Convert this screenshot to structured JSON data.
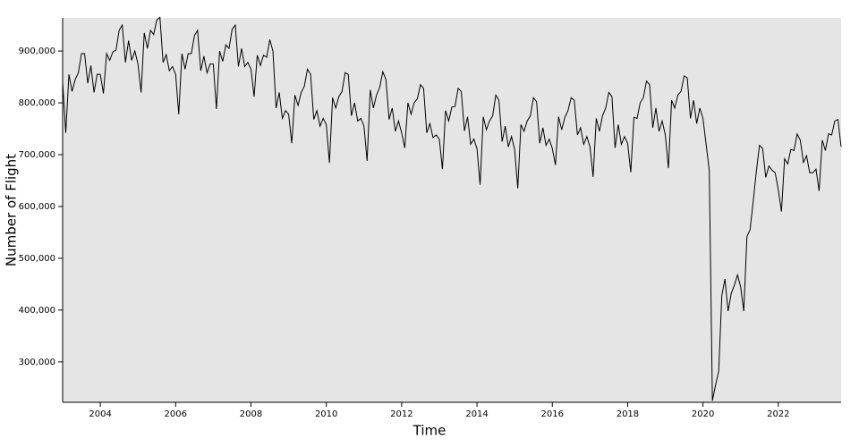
{
  "chart_data": {
    "type": "line",
    "xlabel": "Time",
    "ylabel": "Number of Flight",
    "xlim": [
      2003,
      2023.667
    ],
    "xticks": [
      2004,
      2006,
      2008,
      2010,
      2012,
      2014,
      2016,
      2018,
      2020,
      2022
    ],
    "ylim": [
      222000,
      964000
    ],
    "yticks": [
      {
        "value": 300000,
        "label": "300,000"
      },
      {
        "value": 400000,
        "label": "400,000"
      },
      {
        "value": 500000,
        "label": "500,000"
      },
      {
        "value": 600000,
        "label": "600,000"
      },
      {
        "value": 700000,
        "label": "700,000"
      },
      {
        "value": 800000,
        "label": "800,000"
      },
      {
        "value": 900000,
        "label": "900,000"
      }
    ],
    "background": "#e5e5e5",
    "x": [
      2003,
      2003.083,
      2003.167,
      2003.25,
      2003.333,
      2003.417,
      2003.5,
      2003.583,
      2003.667,
      2003.75,
      2003.833,
      2003.917,
      2004,
      2004.083,
      2004.167,
      2004.25,
      2004.333,
      2004.417,
      2004.5,
      2004.583,
      2004.667,
      2004.75,
      2004.833,
      2004.917,
      2005,
      2005.083,
      2005.167,
      2005.25,
      2005.333,
      2005.417,
      2005.5,
      2005.583,
      2005.667,
      2005.75,
      2005.833,
      2005.917,
      2006,
      2006.083,
      2006.167,
      2006.25,
      2006.333,
      2006.417,
      2006.5,
      2006.583,
      2006.667,
      2006.75,
      2006.833,
      2006.917,
      2007,
      2007.083,
      2007.167,
      2007.25,
      2007.333,
      2007.417,
      2007.5,
      2007.583,
      2007.667,
      2007.75,
      2007.833,
      2007.917,
      2008,
      2008.083,
      2008.167,
      2008.25,
      2008.333,
      2008.417,
      2008.5,
      2008.583,
      2008.667,
      2008.75,
      2008.833,
      2008.917,
      2009,
      2009.083,
      2009.167,
      2009.25,
      2009.333,
      2009.417,
      2009.5,
      2009.583,
      2009.667,
      2009.75,
      2009.833,
      2009.917,
      2010,
      2010.083,
      2010.167,
      2010.25,
      2010.333,
      2010.417,
      2010.5,
      2010.583,
      2010.667,
      2010.75,
      2010.833,
      2010.917,
      2011,
      2011.083,
      2011.167,
      2011.25,
      2011.333,
      2011.417,
      2011.5,
      2011.583,
      2011.667,
      2011.75,
      2011.833,
      2011.917,
      2012,
      2012.083,
      2012.167,
      2012.25,
      2012.333,
      2012.417,
      2012.5,
      2012.583,
      2012.667,
      2012.75,
      2012.833,
      2012.917,
      2013,
      2013.083,
      2013.167,
      2013.25,
      2013.333,
      2013.417,
      2013.5,
      2013.583,
      2013.667,
      2013.75,
      2013.833,
      2013.917,
      2014,
      2014.083,
      2014.167,
      2014.25,
      2014.333,
      2014.417,
      2014.5,
      2014.583,
      2014.667,
      2014.75,
      2014.833,
      2014.917,
      2015,
      2015.083,
      2015.167,
      2015.25,
      2015.333,
      2015.417,
      2015.5,
      2015.583,
      2015.667,
      2015.75,
      2015.833,
      2015.917,
      2016,
      2016.083,
      2016.167,
      2016.25,
      2016.333,
      2016.417,
      2016.5,
      2016.583,
      2016.667,
      2016.75,
      2016.833,
      2016.917,
      2017,
      2017.083,
      2017.167,
      2017.25,
      2017.333,
      2017.417,
      2017.5,
      2017.583,
      2017.667,
      2017.75,
      2017.833,
      2017.917,
      2018,
      2018.083,
      2018.167,
      2018.25,
      2018.333,
      2018.417,
      2018.5,
      2018.583,
      2018.667,
      2018.75,
      2018.833,
      2018.917,
      2019,
      2019.083,
      2019.167,
      2019.25,
      2019.333,
      2019.417,
      2019.5,
      2019.583,
      2019.667,
      2019.75,
      2019.833,
      2019.917,
      2020,
      2020.083,
      2020.167,
      2020.25,
      2020.333,
      2020.417,
      2020.5,
      2020.583,
      2020.667,
      2020.75,
      2020.833,
      2020.917,
      2021,
      2021.083,
      2021.167,
      2021.25,
      2021.333,
      2021.417,
      2021.5,
      2021.583,
      2021.667,
      2021.75,
      2021.833,
      2021.917,
      2022,
      2022.083,
      2022.167,
      2022.25,
      2022.333,
      2022.417,
      2022.5,
      2022.583,
      2022.667,
      2022.75,
      2022.833,
      2022.917,
      2023,
      2023.083,
      2023.167,
      2023.25,
      2023.333,
      2023.417,
      2023.5,
      2023.583,
      2023.667
    ],
    "series": [
      {
        "color": "#000000",
        "values": [
          840000,
          742000,
          855000,
          822000,
          845000,
          858000,
          895000,
          895000,
          838000,
          872000,
          820000,
          855000,
          855000,
          818000,
          895000,
          882000,
          898000,
          902000,
          940000,
          950000,
          878000,
          920000,
          882000,
          900000,
          875000,
          820000,
          935000,
          905000,
          940000,
          932000,
          960000,
          965000,
          878000,
          893000,
          862000,
          870000,
          855000,
          778000,
          895000,
          865000,
          895000,
          895000,
          930000,
          940000,
          862000,
          890000,
          858000,
          875000,
          875000,
          788000,
          900000,
          880000,
          912000,
          905000,
          942000,
          950000,
          870000,
          905000,
          870000,
          878000,
          865000,
          812000,
          892000,
          872000,
          892000,
          888000,
          922000,
          900000,
          790000,
          820000,
          770000,
          785000,
          778000,
          722000,
          815000,
          795000,
          820000,
          832000,
          865000,
          855000,
          768000,
          785000,
          755000,
          770000,
          758000,
          684000,
          810000,
          790000,
          812000,
          822000,
          858000,
          855000,
          775000,
          800000,
          765000,
          770000,
          755000,
          688000,
          825000,
          790000,
          815000,
          830000,
          860000,
          845000,
          768000,
          790000,
          745000,
          765000,
          742000,
          713000,
          800000,
          778000,
          800000,
          808000,
          835000,
          828000,
          742000,
          760000,
          733000,
          738000,
          730000,
          672000,
          785000,
          765000,
          792000,
          793000,
          828000,
          822000,
          746000,
          773000,
          720000,
          730000,
          712000,
          642000,
          773000,
          748000,
          765000,
          775000,
          815000,
          805000,
          725000,
          755000,
          715000,
          735000,
          710000,
          635000,
          758000,
          745000,
          765000,
          775000,
          810000,
          802000,
          722000,
          752000,
          718000,
          730000,
          712000,
          680000,
          773000,
          748000,
          772000,
          785000,
          810000,
          805000,
          738000,
          752000,
          720000,
          735000,
          715000,
          657000,
          770000,
          745000,
          775000,
          790000,
          820000,
          812000,
          713000,
          758000,
          720000,
          735000,
          722000,
          666000,
          772000,
          770000,
          800000,
          810000,
          842000,
          835000,
          752000,
          790000,
          745000,
          765000,
          738000,
          674000,
          805000,
          790000,
          815000,
          822000,
          852000,
          848000,
          770000,
          805000,
          760000,
          790000,
          770000,
          720000,
          670000,
          225000,
          255000,
          282000,
          428000,
          460000,
          398000,
          432000,
          448000,
          468000,
          445000,
          398000,
          542000,
          555000,
          610000,
          668000,
          718000,
          712000,
          656000,
          678000,
          670000,
          665000,
          632000,
          590000,
          692000,
          682000,
          710000,
          708000,
          740000,
          728000,
          685000,
          698000,
          665000,
          665000,
          672000,
          630000,
          728000,
          708000,
          740000,
          738000,
          765000,
          768000,
          715000
        ]
      }
    ]
  }
}
